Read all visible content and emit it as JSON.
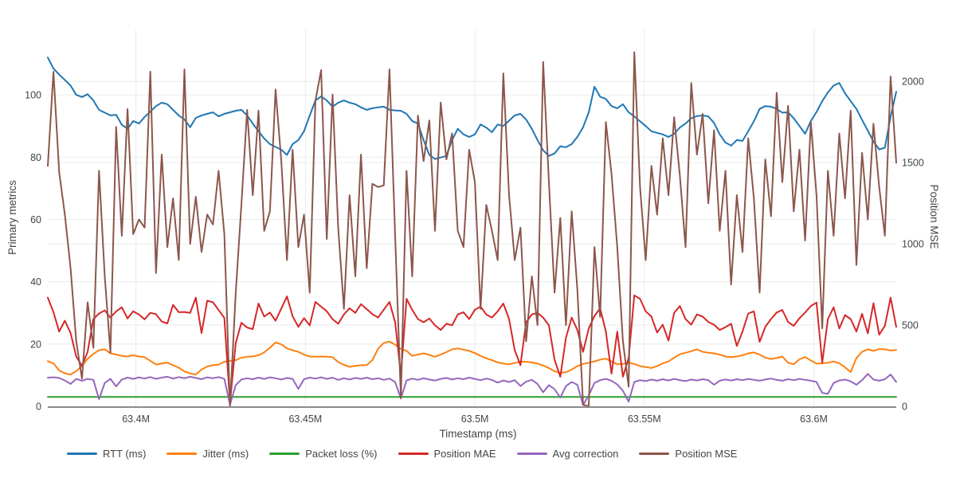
{
  "chart_data": {
    "type": "line",
    "title": "",
    "xlabel": "Timestamp (ms)",
    "ylabel_left": "Primary metrics",
    "ylabel_right": "Position MSE",
    "grid": true,
    "legend_position": "bottom-left",
    "x_axis": {
      "start": 63374000,
      "step": 1680,
      "n_points": 150,
      "tick_values": [
        63400000,
        63450000,
        63500000,
        63550000,
        63600000
      ],
      "tick_labels": [
        "63.4M",
        "63.45M",
        "63.5M",
        "63.55M",
        "63.6M"
      ]
    },
    "left_axis": {
      "range": [
        0,
        121
      ],
      "ticks": [
        0,
        20,
        40,
        60,
        80,
        100
      ]
    },
    "right_axis": {
      "range": [
        0,
        2320
      ],
      "ticks": [
        0,
        500,
        1000,
        1500,
        2000
      ]
    },
    "series": [
      {
        "name": "RTT (ms)",
        "color": "#1f77b4",
        "axis": "left",
        "values": [
          112,
          108.5,
          106.5,
          104.8,
          103,
          100,
          99.3,
          100.2,
          98.2,
          95.2,
          94.3,
          93.4,
          93.6,
          90.4,
          89.1,
          91.6,
          90.8,
          92.9,
          94.6,
          96.4,
          97.5,
          97,
          95.2,
          93.4,
          92.1,
          89.6,
          92.6,
          93.4,
          93.9,
          94.4,
          93.1,
          93.9,
          94.4,
          94.9,
          95.2,
          93.4,
          90.8,
          88.3,
          86,
          84.2,
          83.3,
          82.4,
          80.7,
          84.2,
          85.5,
          88.3,
          93.4,
          98.2,
          99.5,
          98.2,
          96.2,
          97.5,
          98.2,
          97.5,
          97,
          96,
          95.2,
          95.7,
          96,
          96.2,
          95.2,
          95,
          94.9,
          93.9,
          91.6,
          90.8,
          85.5,
          80.7,
          79.4,
          79.9,
          80.4,
          85.5,
          89.1,
          87.3,
          86.5,
          87.3,
          90.5,
          89.5,
          88,
          90.5,
          90,
          91.7,
          93.4,
          93.9,
          92.1,
          89.1,
          85.5,
          82.2,
          80.4,
          81.2,
          83.5,
          83.2,
          84.2,
          86.5,
          89.6,
          94.4,
          102.6,
          99.4,
          98.7,
          96.4,
          95.7,
          97,
          94.4,
          93.1,
          91.5,
          90,
          88.3,
          87.8,
          87.3,
          86.5,
          87.5,
          89.5,
          90.8,
          92.5,
          93.2,
          93.4,
          93.1,
          91,
          87.3,
          84.7,
          83.7,
          85.5,
          85.2,
          88.3,
          91.5,
          95.5,
          96.4,
          96.2,
          95.5,
          94.3,
          94.4,
          92.5,
          90,
          87.5,
          91.6,
          94.5,
          98,
          100.8,
          103,
          103.8,
          100.5,
          98,
          95.5,
          92,
          88.5,
          85,
          82.5,
          83,
          93,
          101
        ]
      },
      {
        "name": "Jitter (ms)",
        "color": "#ff7f0e",
        "axis": "left",
        "values": [
          14.5,
          13.8,
          11.5,
          10.6,
          10.2,
          11.3,
          13,
          15.3,
          16.8,
          18,
          18.3,
          17,
          16.6,
          16.2,
          16,
          16.4,
          16,
          15.8,
          14.6,
          13.4,
          13.8,
          14,
          13.2,
          12.4,
          11.2,
          10.6,
          10.2,
          11.8,
          12.8,
          13.2,
          13.4,
          14.3,
          14.6,
          14.8,
          15.6,
          15.9,
          16,
          16.4,
          17.3,
          18.8,
          20.5,
          19.9,
          18.6,
          18,
          17.5,
          16.6,
          16,
          15.9,
          16,
          15.9,
          15.8,
          14.2,
          13.3,
          12.7,
          13,
          13.2,
          13.2,
          14.8,
          18.5,
          20.3,
          20.8,
          19.8,
          18.4,
          17.8,
          16.2,
          16.6,
          17,
          16.5,
          15.9,
          16.6,
          17.4,
          18.3,
          18.6,
          18.2,
          17.8,
          17.1,
          16.2,
          15.4,
          14.8,
          14.1,
          13.7,
          13.5,
          13.9,
          14.4,
          14.3,
          14.1,
          13.7,
          13.1,
          12.3,
          11.2,
          10.8,
          10.9,
          11.8,
          12.9,
          13.6,
          14,
          14.4,
          15,
          15.3,
          14.4,
          13.5,
          13.6,
          14,
          13.6,
          12.9,
          12.6,
          12.3,
          12.9,
          13.8,
          14.4,
          15.6,
          16.7,
          17.2,
          17.7,
          18.3,
          17.5,
          17.2,
          17,
          16.6,
          16,
          15.8,
          16,
          16.4,
          17,
          17.3,
          16.6,
          15.6,
          15.2,
          15.5,
          16,
          14,
          13.5,
          15.1,
          15.8,
          14.7,
          13.7,
          13.8,
          14,
          14.4,
          13.8,
          12.5,
          11,
          15.5,
          17.5,
          18.3,
          17.8,
          18.4,
          18.3,
          17.9,
          18.1
        ]
      },
      {
        "name": "Packet loss (%)",
        "color": "#2ca02c",
        "axis": "left",
        "constant": 3,
        "values": []
      },
      {
        "name": "Position MAE",
        "color": "#d62728",
        "axis": "left",
        "values": [
          34.9,
          30.2,
          24,
          27.5,
          23.5,
          16,
          13,
          17.5,
          28,
          29.8,
          30.8,
          28.5,
          30.5,
          31.8,
          28.2,
          30.5,
          29.5,
          27.9,
          30,
          29.6,
          27.2,
          26.6,
          32.6,
          30.2,
          30.3,
          30,
          34.9,
          23.5,
          33.9,
          33.4,
          30.9,
          28.4,
          1,
          20.4,
          26.8,
          25.3,
          24.8,
          33,
          28.8,
          30.1,
          27.5,
          31.4,
          35.3,
          28.9,
          25.5,
          28.3,
          26,
          33.5,
          32,
          30.5,
          28,
          26.5,
          29.5,
          31.5,
          30,
          32.8,
          31.2,
          29.6,
          28.5,
          31,
          33.5,
          27,
          10,
          34.5,
          31,
          28,
          27,
          28.2,
          26,
          24.5,
          26.5,
          26,
          29.5,
          30.2,
          28,
          31,
          32,
          29.5,
          28.5,
          30.5,
          33,
          28,
          18,
          13.2,
          27,
          29.5,
          30,
          28.5,
          26,
          15,
          9.5,
          22,
          28.5,
          24.5,
          17.5,
          25,
          29,
          31.5,
          24,
          10.5,
          24,
          9.5,
          15.5,
          35.6,
          34.5,
          30.5,
          28.8,
          23.7,
          26.2,
          21.1,
          30,
          32.2,
          28,
          26.2,
          29.5,
          28.8,
          27.1,
          26.2,
          24.5,
          25.4,
          26.5,
          19.4,
          24,
          29.8,
          30.5,
          20.7,
          25.5,
          28,
          30.1,
          30.9,
          27.1,
          25.8,
          28.3,
          30.1,
          32.2,
          33.3,
          14,
          28,
          31.8,
          25,
          29.3,
          28,
          24,
          29.7,
          23.4,
          33.1,
          23,
          25.8,
          34.9,
          25.5
        ]
      },
      {
        "name": "Avg correction",
        "color": "#9467bd",
        "axis": "left",
        "values": [
          9.2,
          9.3,
          9.1,
          8.3,
          7.2,
          8.8,
          8.2,
          8.8,
          8.5,
          2.3,
          7.5,
          8.8,
          6.4,
          8.6,
          9.2,
          8.8,
          9.3,
          8.9,
          9.4,
          8.8,
          9.2,
          9.5,
          8.9,
          9.4,
          9,
          9.5,
          9.1,
          8.7,
          9.3,
          9,
          9.4,
          8.8,
          0.5,
          6.8,
          8.6,
          9,
          8.7,
          9.2,
          8.8,
          9.3,
          9,
          8.6,
          9.1,
          8.8,
          5.6,
          8.7,
          9.2,
          8.9,
          9.3,
          8.8,
          9.2,
          8.5,
          9,
          8.6,
          9.1,
          8.8,
          9.2,
          8.7,
          9,
          8.5,
          8.9,
          7.8,
          2.5,
          8.3,
          8.9,
          8.5,
          9,
          8.6,
          8.3,
          8.8,
          9.1,
          8.6,
          9,
          8.7,
          9.2,
          8.8,
          8.4,
          8.9,
          8.5,
          7.6,
          8.3,
          7.8,
          8.4,
          6.5,
          7.9,
          8.5,
          7.2,
          4.5,
          6.8,
          5.5,
          2.8,
          6.5,
          7.8,
          6.9,
          0.4,
          3.5,
          7.5,
          8.4,
          8.8,
          8.2,
          7,
          5,
          1.5,
          7.8,
          8.4,
          8.1,
          8.6,
          8.2,
          8.7,
          8.3,
          8.8,
          8.4,
          8.1,
          8.6,
          8.3,
          8.7,
          8.4,
          6.9,
          8.2,
          8.6,
          8.3,
          8.7,
          8.4,
          8.8,
          8.5,
          8.2,
          8.6,
          8.9,
          8.5,
          8.2,
          8.7,
          8.4,
          8.8,
          8.5,
          8.2,
          7.8,
          4.3,
          4,
          7.5,
          8.3,
          8.6,
          8,
          6.9,
          8.4,
          10.4,
          8.6,
          8.2,
          8.7,
          10.2,
          7.8
        ]
      },
      {
        "name": "Position MSE",
        "color": "#8c564b",
        "axis": "right",
        "values": [
          1480,
          2060,
          1440,
          1180,
          850,
          400,
          170,
          640,
          360,
          1450,
          800,
          330,
          1720,
          1050,
          1830,
          1060,
          1150,
          1100,
          2060,
          820,
          1550,
          980,
          1280,
          900,
          2075,
          1000,
          1290,
          950,
          1180,
          1120,
          1450,
          1060,
          0,
          700,
          1240,
          1825,
          1300,
          1820,
          1080,
          1200,
          1950,
          1510,
          900,
          1580,
          980,
          1180,
          700,
          1880,
          2070,
          1030,
          1920,
          1100,
          600,
          1300,
          800,
          1550,
          850,
          1370,
          1350,
          1360,
          2075,
          1050,
          50,
          1450,
          800,
          1790,
          1510,
          1760,
          1080,
          1870,
          1520,
          1680,
          1080,
          980,
          1580,
          1380,
          600,
          1240,
          1080,
          900,
          2050,
          1300,
          900,
          1100,
          400,
          800,
          500,
          2120,
          1380,
          700,
          1160,
          500,
          1200,
          720,
          10,
          0,
          980,
          550,
          1750,
          1430,
          980,
          400,
          120,
          2180,
          1350,
          900,
          1480,
          1180,
          1650,
          1300,
          1780,
          1420,
          980,
          1990,
          1550,
          1800,
          1250,
          1700,
          1080,
          1450,
          750,
          1300,
          950,
          1650,
          1280,
          700,
          1520,
          1170,
          1930,
          1380,
          1850,
          1200,
          1580,
          1020,
          1750,
          1300,
          480,
          1450,
          1050,
          1680,
          1280,
          1820,
          870,
          1560,
          1150,
          1740,
          1350,
          1050,
          2030,
          1500
        ]
      }
    ]
  },
  "styles": {
    "background": "#ffffff",
    "grid_color": "#e9ebee",
    "axis_line_color": "#8c8c8c",
    "text_color": "#444444"
  }
}
